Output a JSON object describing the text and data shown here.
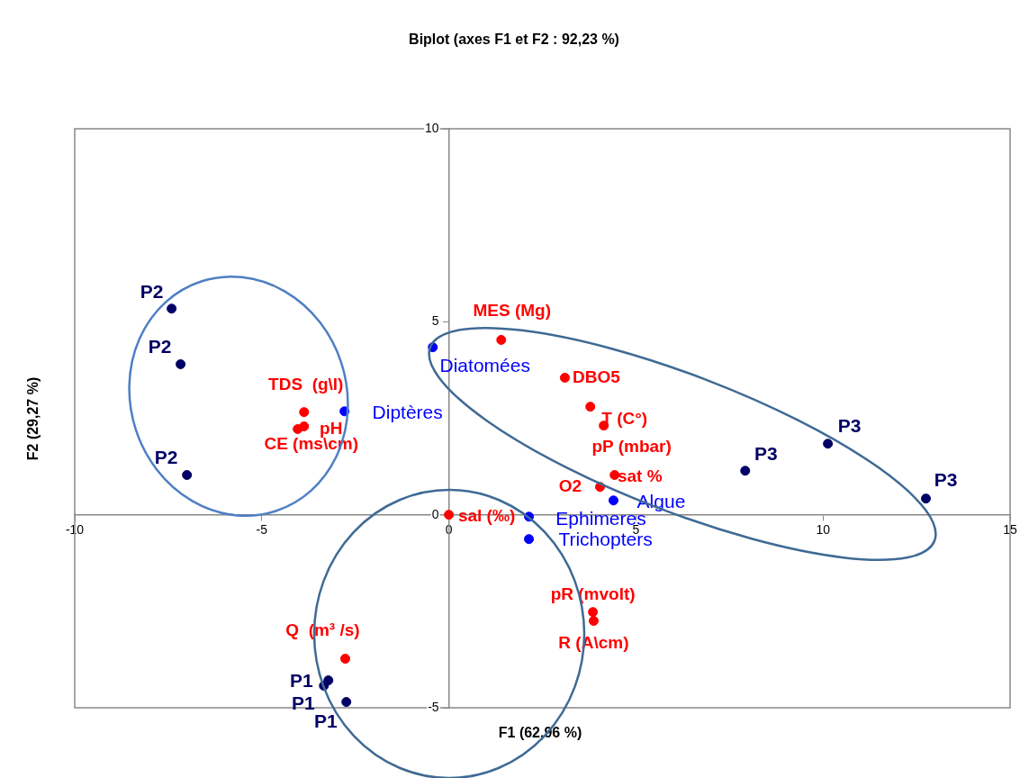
{
  "chart_data": {
    "type": "scatter",
    "title": "Biplot (axes F1 et F2 : 92,23 %)",
    "xlabel": "F1 (62,96 %)",
    "ylabel": "F2 (29,27 %)",
    "xlim": [
      -10,
      15
    ],
    "xticks": [
      -10,
      -5,
      0,
      5,
      10,
      15
    ],
    "ylim": [
      -5,
      10
    ],
    "yticks": [
      -5,
      0,
      5,
      10
    ],
    "grid": false,
    "legend": false,
    "marker": "circle",
    "series": [
      {
        "color": "#000066",
        "x": [
          -7.41,
          -7.17,
          -7.0,
          10.13,
          7.92,
          12.75,
          -3.22,
          -3.34,
          -2.74
        ],
        "values": [
          5.34,
          3.9,
          1.03,
          1.84,
          1.14,
          0.42,
          -4.29,
          -4.43,
          -4.85
        ],
        "value_labels": [
          "P2",
          "P2",
          "P2",
          "P3",
          "P3",
          "P3",
          "P1",
          "P1",
          "P1"
        ]
      },
      {
        "color": "#ff0000",
        "x": [
          -3.87,
          -3.87,
          -4.04,
          1.4,
          3.1,
          3.78,
          4.14,
          4.43,
          4.04,
          0,
          3.85,
          3.87,
          -2.77
        ],
        "values": [
          2.66,
          2.29,
          2.22,
          4.53,
          3.55,
          2.8,
          2.31,
          1.03,
          0.72,
          0,
          -2.52,
          -2.75,
          -3.73
        ],
        "value_labels": [
          "TDS  (g\\l)",
          "pH",
          "CE (ms\\cm)",
          "MES (Mg)",
          "DBO5",
          "T (C°)",
          "pP (mbar)",
          "sat %",
          "O2",
          "sal (‰)",
          "pR (mvolt)",
          "R (A\\cm)",
          "Q  (m³ /s)"
        ]
      },
      {
        "color": "#0000ff",
        "x": [
          -2.79,
          -0.43,
          4.4,
          2.14,
          2.14
        ],
        "values": [
          2.68,
          4.34,
          0.37,
          -0.05,
          -0.63
        ],
        "value_labels": [
          "Diptères",
          "Diatomées",
          "Algue",
          "Ephimeres",
          "Trichopters"
        ]
      }
    ]
  }
}
